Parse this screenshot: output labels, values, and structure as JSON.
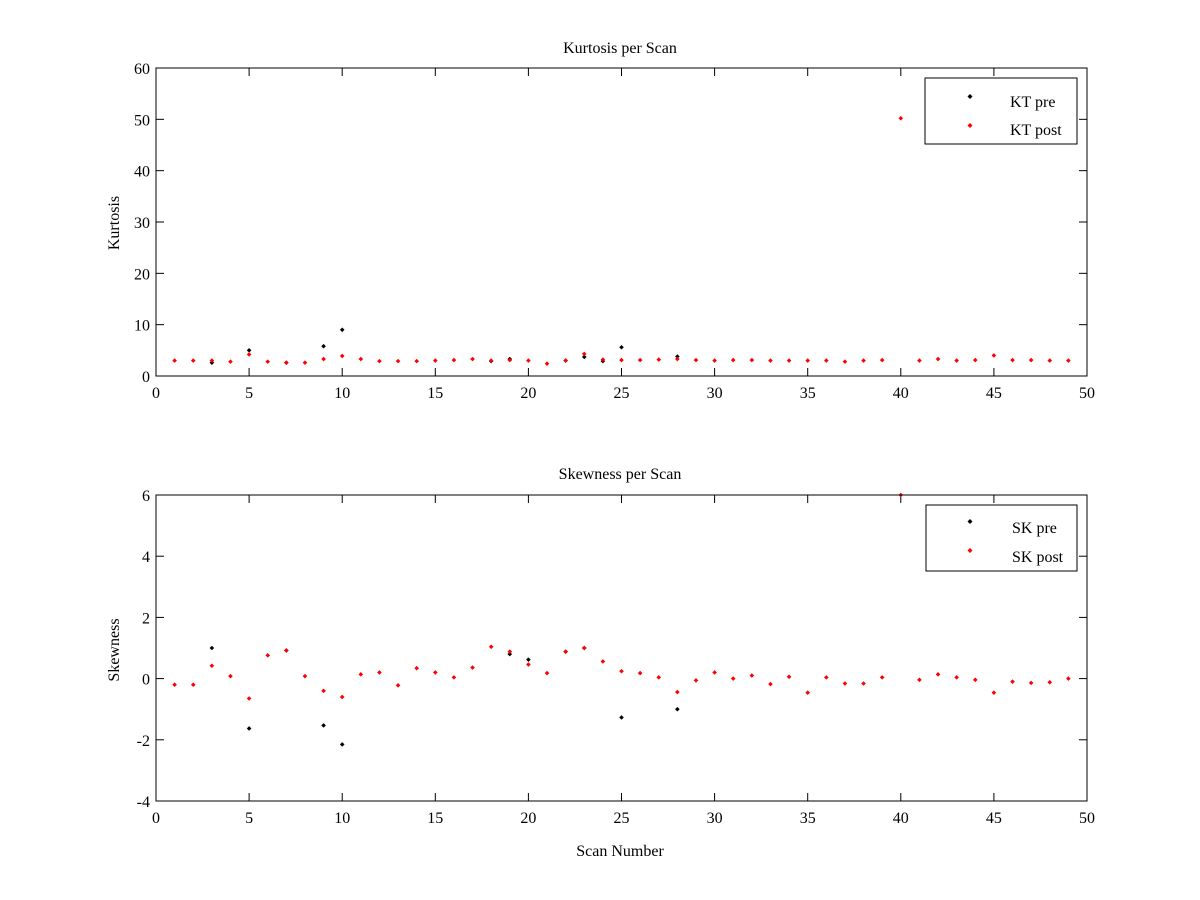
{
  "colors": {
    "pre": "#000000",
    "post": "#ff0000",
    "axis": "#000000",
    "background": "#ffffff"
  },
  "chart_data": [
    {
      "type": "scatter",
      "title": "Kurtosis per Scan",
      "xlabel": "",
      "ylabel": "Kurtosis",
      "xlim": [
        0,
        50
      ],
      "ylim": [
        0,
        60
      ],
      "xticks": [
        0,
        5,
        10,
        15,
        20,
        25,
        30,
        35,
        40,
        45,
        50
      ],
      "yticks": [
        0,
        10,
        20,
        30,
        40,
        50,
        60
      ],
      "grid": false,
      "legend_position": "top-right",
      "series": [
        {
          "name": "KT pre",
          "color": "#000000",
          "x": [
            3,
            5,
            7,
            9,
            10,
            18,
            19,
            22,
            23,
            24,
            25,
            28
          ],
          "y": [
            2.6,
            5.0,
            2.6,
            5.8,
            9.0,
            2.9,
            3.3,
            3.0,
            3.7,
            2.9,
            5.6,
            3.8
          ]
        },
        {
          "name": "KT post",
          "color": "#ff0000",
          "x": [
            1,
            2,
            3,
            4,
            5,
            6,
            7,
            8,
            9,
            10,
            11,
            12,
            13,
            14,
            15,
            16,
            17,
            18,
            19,
            20,
            21,
            22,
            23,
            24,
            25,
            26,
            27,
            28,
            29,
            30,
            31,
            32,
            33,
            34,
            35,
            36,
            37,
            38,
            39,
            40,
            41,
            42,
            43,
            44,
            45,
            46,
            47,
            48,
            49
          ],
          "y": [
            3.0,
            3.0,
            3.0,
            2.8,
            4.2,
            2.8,
            2.6,
            2.6,
            3.3,
            3.9,
            3.3,
            2.9,
            2.9,
            2.9,
            3.0,
            3.1,
            3.3,
            3.0,
            3.1,
            3.0,
            2.4,
            3.0,
            4.3,
            3.2,
            3.1,
            3.1,
            3.2,
            3.3,
            3.1,
            3.0,
            3.1,
            3.1,
            3.0,
            3.0,
            3.0,
            3.0,
            2.8,
            3.0,
            3.1,
            50.2,
            3.0,
            3.3,
            3.0,
            3.1,
            4.0,
            3.1,
            3.1,
            3.0,
            3.0
          ]
        }
      ]
    },
    {
      "type": "scatter",
      "title": "Skewness per Scan",
      "xlabel": "Scan Number",
      "ylabel": "Skewness",
      "xlim": [
        0,
        50
      ],
      "ylim": [
        -4,
        6
      ],
      "xticks": [
        0,
        5,
        10,
        15,
        20,
        25,
        30,
        35,
        40,
        45,
        50
      ],
      "yticks": [
        -4,
        -2,
        0,
        2,
        4,
        6
      ],
      "grid": false,
      "legend_position": "top-right",
      "series": [
        {
          "name": "SK pre",
          "color": "#000000",
          "x": [
            3,
            5,
            7,
            9,
            10,
            19,
            20,
            22,
            23,
            25,
            28
          ],
          "y": [
            1.0,
            -1.63,
            0.92,
            -1.53,
            -2.15,
            0.8,
            0.62,
            0.88,
            1.0,
            -1.27,
            -1.0
          ]
        },
        {
          "name": "SK post",
          "color": "#ff0000",
          "x": [
            1,
            2,
            3,
            4,
            5,
            6,
            7,
            8,
            9,
            10,
            11,
            12,
            13,
            14,
            15,
            16,
            17,
            18,
            19,
            20,
            21,
            22,
            23,
            24,
            25,
            26,
            27,
            28,
            29,
            30,
            31,
            32,
            33,
            34,
            35,
            36,
            37,
            38,
            39,
            40,
            41,
            42,
            43,
            44,
            45,
            46,
            47,
            48,
            49
          ],
          "y": [
            -0.2,
            -0.2,
            0.42,
            0.08,
            -0.65,
            0.76,
            0.92,
            0.08,
            -0.4,
            -0.6,
            0.14,
            0.2,
            -0.22,
            0.34,
            0.2,
            0.04,
            0.36,
            1.04,
            0.88,
            0.46,
            0.18,
            0.88,
            1.0,
            0.56,
            0.24,
            0.18,
            0.04,
            -0.44,
            -0.06,
            0.2,
            0.0,
            0.1,
            -0.18,
            0.06,
            -0.46,
            0.04,
            -0.16,
            -0.16,
            0.04,
            6.0,
            -0.04,
            0.14,
            0.04,
            -0.04,
            -0.46,
            -0.1,
            -0.14,
            -0.12,
            0.0
          ]
        }
      ]
    }
  ]
}
